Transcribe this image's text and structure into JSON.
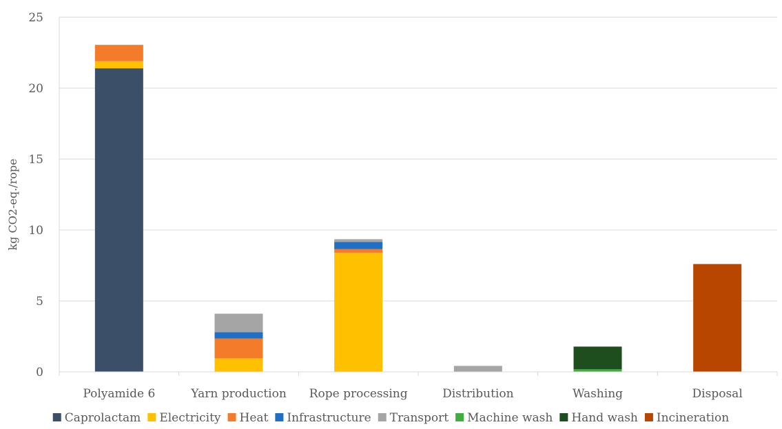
{
  "chart_data": {
    "type": "bar",
    "stacked": true,
    "title": "",
    "xlabel": "",
    "ylabel": "kg CO2-eq./rope",
    "ylim": [
      0,
      25
    ],
    "yticks": [
      0,
      5,
      10,
      15,
      20,
      25
    ],
    "grid": true,
    "legend_position": "bottom",
    "categories": [
      "Polyamide 6",
      "Yarn production",
      "Rope processing",
      "Distribution",
      "Washing",
      "Disposal"
    ],
    "series": [
      {
        "name": "Caprolactam",
        "color": "#3b4f68",
        "values": [
          21.4,
          0,
          0,
          0,
          0,
          0
        ]
      },
      {
        "name": "Electricity",
        "color": "#ffc000",
        "values": [
          0.5,
          0.95,
          8.4,
          0,
          0,
          0
        ]
      },
      {
        "name": "Heat",
        "color": "#f47b2a",
        "values": [
          1.15,
          1.4,
          0.25,
          0,
          0,
          0
        ]
      },
      {
        "name": "Infrastructure",
        "color": "#1f6fc4",
        "values": [
          0,
          0.45,
          0.5,
          0,
          0,
          0
        ]
      },
      {
        "name": "Transport",
        "color": "#a5a5a5",
        "values": [
          0,
          1.3,
          0.2,
          0.42,
          0,
          0
        ]
      },
      {
        "name": "Machine wash",
        "color": "#3fae3f",
        "values": [
          0,
          0,
          0,
          0,
          0.18,
          0
        ]
      },
      {
        "name": "Hand wash",
        "color": "#1e4d1e",
        "values": [
          0,
          0,
          0,
          0,
          1.6,
          0
        ]
      },
      {
        "name": "Incineration",
        "color": "#b84500",
        "values": [
          0,
          0,
          0,
          0,
          0,
          7.6
        ]
      }
    ]
  }
}
